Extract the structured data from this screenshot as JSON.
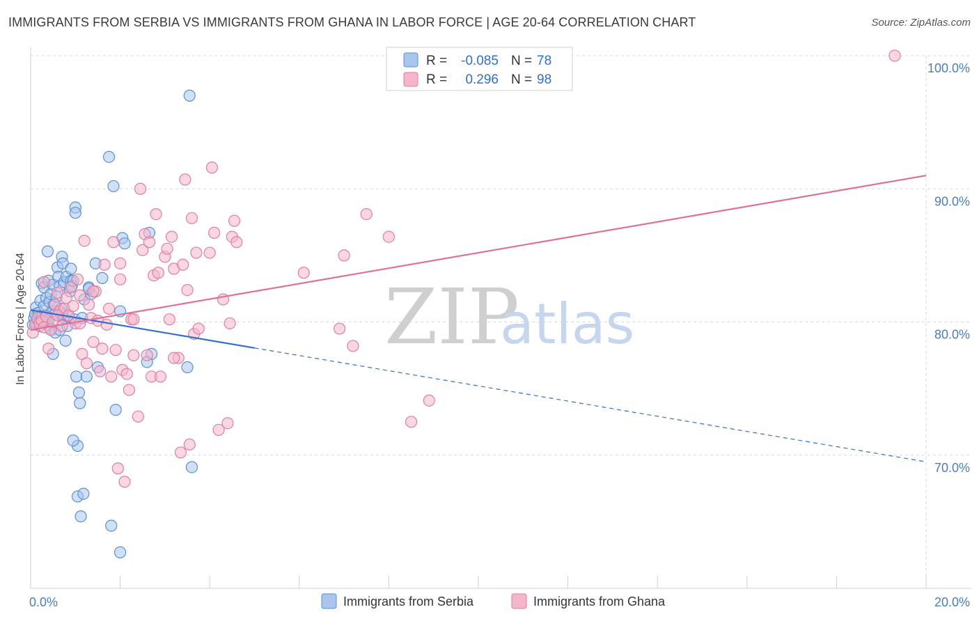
{
  "header": {
    "title": "IMMIGRANTS FROM SERBIA VS IMMIGRANTS FROM GHANA IN LABOR FORCE | AGE 20-64 CORRELATION CHART",
    "source": "Source: ZipAtlas.com"
  },
  "watermark": {
    "part1": "ZIP",
    "part2": "atlas"
  },
  "colors": {
    "serbia_fill": "#a9c7ee",
    "serbia_stroke": "#5b8fd6",
    "serbia_line": "#2f6fd0",
    "ghana_fill": "#f5b6cb",
    "ghana_stroke": "#e07ea0",
    "ghana_line": "#e0709a",
    "axis_text": "#4a7cc8",
    "grid": "#d8d8d8"
  },
  "legend_stats": {
    "rows": [
      {
        "r_label": "R =",
        "r_value": "-0.085",
        "n_label": "N =",
        "n_value": "78"
      },
      {
        "r_label": "R =",
        "r_value": "0.296",
        "n_label": "N =",
        "n_value": "98"
      }
    ]
  },
  "chart_data": {
    "type": "scatter",
    "title": "IMMIGRANTS FROM SERBIA VS IMMIGRANTS FROM GHANA IN LABOR FORCE | AGE 20-64 CORRELATION CHART",
    "xlabel": "",
    "ylabel": "In Labor Force | Age 20-64",
    "xlim": [
      0,
      20
    ],
    "ylim": [
      60,
      100
    ],
    "x_tick_labels": [
      "0.0%",
      "20.0%"
    ],
    "y_ticks": [
      70,
      80,
      90,
      100
    ],
    "y_tick_labels": [
      "70.0%",
      "80.0%",
      "90.0%",
      "100.0%"
    ],
    "grid": true,
    "legend_position": "bottom",
    "series": [
      {
        "name": "Immigrants from Serbia",
        "r": -0.085,
        "n": 78,
        "trend": {
          "x_start": 0.0,
          "y_start": 80.9,
          "x_solid_end": 5.0,
          "x_end": 20.0,
          "y_end": 69.5
        },
        "points": [
          [
            0.05,
            79.8
          ],
          [
            0.08,
            80.3
          ],
          [
            0.1,
            80.6
          ],
          [
            0.12,
            81.1
          ],
          [
            0.12,
            79.9
          ],
          [
            0.15,
            80.2
          ],
          [
            0.18,
            80.7
          ],
          [
            0.2,
            79.7
          ],
          [
            0.2,
            80.1
          ],
          [
            0.22,
            81.6
          ],
          [
            0.25,
            80.4
          ],
          [
            0.25,
            82.9
          ],
          [
            0.28,
            80.0
          ],
          [
            0.3,
            81.2
          ],
          [
            0.3,
            82.6
          ],
          [
            0.35,
            80.5
          ],
          [
            0.35,
            81.8
          ],
          [
            0.38,
            79.8
          ],
          [
            0.38,
            85.3
          ],
          [
            0.4,
            80.2
          ],
          [
            0.4,
            83.1
          ],
          [
            0.42,
            81.5
          ],
          [
            0.45,
            82.1
          ],
          [
            0.45,
            79.5
          ],
          [
            0.48,
            80.8
          ],
          [
            0.5,
            77.6
          ],
          [
            0.5,
            82.8
          ],
          [
            0.52,
            81.3
          ],
          [
            0.55,
            80.6
          ],
          [
            0.55,
            79.2
          ],
          [
            0.58,
            81.9
          ],
          [
            0.6,
            84.1
          ],
          [
            0.62,
            83.4
          ],
          [
            0.65,
            82.7
          ],
          [
            0.65,
            79.4
          ],
          [
            0.68,
            81.0
          ],
          [
            0.7,
            84.9
          ],
          [
            0.72,
            84.4
          ],
          [
            0.75,
            83.0
          ],
          [
            0.75,
            80.3
          ],
          [
            0.78,
            78.6
          ],
          [
            0.8,
            83.4
          ],
          [
            0.82,
            79.7
          ],
          [
            0.85,
            80.4
          ],
          [
            0.88,
            82.3
          ],
          [
            0.9,
            83.1
          ],
          [
            0.9,
            84.0
          ],
          [
            0.92,
            82.7
          ],
          [
            0.95,
            83.1
          ],
          [
            0.98,
            80.2
          ],
          [
            1.0,
            88.6
          ],
          [
            1.0,
            88.2
          ],
          [
            1.02,
            75.9
          ],
          [
            1.05,
            70.7
          ],
          [
            1.05,
            66.9
          ],
          [
            1.08,
            74.7
          ],
          [
            1.1,
            73.9
          ],
          [
            1.12,
            65.4
          ],
          [
            1.15,
            80.3
          ],
          [
            1.18,
            67.1
          ],
          [
            1.2,
            81.7
          ],
          [
            1.25,
            75.9
          ],
          [
            1.3,
            82.6
          ],
          [
            1.35,
            82.1
          ],
          [
            1.45,
            84.4
          ],
          [
            1.5,
            76.6
          ],
          [
            1.6,
            83.3
          ],
          [
            1.75,
            92.4
          ],
          [
            1.8,
            64.7
          ],
          [
            1.85,
            90.2
          ],
          [
            1.9,
            73.4
          ],
          [
            2.0,
            80.8
          ],
          [
            2.05,
            86.3
          ],
          [
            2.1,
            85.9
          ],
          [
            2.6,
            77.0
          ],
          [
            2.65,
            86.7
          ],
          [
            3.5,
            76.6
          ],
          [
            3.6,
            69.1
          ]
        ],
        "extra_points": [
          [
            3.55,
            97.0
          ],
          [
            2.0,
            62.7
          ],
          [
            0.95,
            71.1
          ],
          [
            1.3,
            82.5
          ],
          [
            0.7,
            80.6
          ],
          [
            2.7,
            77.6
          ]
        ]
      },
      {
        "name": "Immigrants from Ghana",
        "r": 0.296,
        "n": 98,
        "trend": {
          "x_start": 0.0,
          "y_start": 79.4,
          "x_end": 20.0,
          "y_end": 91.0
        },
        "points": [
          [
            0.05,
            79.2
          ],
          [
            0.1,
            79.8
          ],
          [
            0.15,
            80.3
          ],
          [
            0.2,
            79.9
          ],
          [
            0.25,
            80.1
          ],
          [
            0.3,
            79.6
          ],
          [
            0.35,
            80.4
          ],
          [
            0.4,
            78.0
          ],
          [
            0.45,
            79.4
          ],
          [
            0.5,
            80.0
          ],
          [
            0.55,
            81.3
          ],
          [
            0.6,
            82.2
          ],
          [
            0.65,
            80.8
          ],
          [
            0.7,
            79.7
          ],
          [
            0.75,
            81.0
          ],
          [
            0.8,
            81.8
          ],
          [
            0.85,
            80.5
          ],
          [
            0.9,
            82.6
          ],
          [
            0.95,
            81.2
          ],
          [
            1.0,
            79.9
          ],
          [
            1.05,
            83.2
          ],
          [
            1.1,
            82.0
          ],
          [
            1.15,
            77.6
          ],
          [
            1.2,
            86.1
          ],
          [
            1.25,
            76.9
          ],
          [
            1.3,
            81.3
          ],
          [
            1.35,
            80.3
          ],
          [
            1.4,
            78.5
          ],
          [
            1.45,
            82.3
          ],
          [
            1.5,
            80.1
          ],
          [
            1.55,
            76.3
          ],
          [
            1.6,
            78.0
          ],
          [
            1.65,
            84.3
          ],
          [
            1.7,
            79.8
          ],
          [
            1.75,
            81.0
          ],
          [
            1.8,
            75.9
          ],
          [
            1.85,
            86.0
          ],
          [
            1.9,
            77.9
          ],
          [
            1.95,
            69.0
          ],
          [
            2.0,
            83.2
          ],
          [
            2.05,
            76.4
          ],
          [
            2.1,
            68.0
          ],
          [
            2.15,
            76.1
          ],
          [
            2.2,
            74.9
          ],
          [
            2.25,
            80.2
          ],
          [
            2.3,
            77.5
          ],
          [
            2.4,
            72.9
          ],
          [
            2.45,
            90.0
          ],
          [
            2.5,
            85.4
          ],
          [
            2.55,
            86.6
          ],
          [
            2.6,
            77.5
          ],
          [
            2.65,
            86.0
          ],
          [
            2.7,
            75.9
          ],
          [
            2.75,
            83.5
          ],
          [
            2.8,
            88.1
          ],
          [
            2.85,
            83.7
          ],
          [
            2.9,
            75.9
          ],
          [
            3.0,
            84.9
          ],
          [
            3.05,
            85.5
          ],
          [
            3.1,
            80.2
          ],
          [
            3.15,
            86.4
          ],
          [
            3.2,
            84.0
          ],
          [
            3.3,
            77.3
          ],
          [
            3.35,
            70.2
          ],
          [
            3.4,
            84.3
          ],
          [
            3.45,
            90.7
          ],
          [
            3.5,
            82.4
          ],
          [
            3.55,
            70.8
          ],
          [
            3.6,
            87.8
          ],
          [
            3.65,
            79.1
          ],
          [
            3.7,
            85.2
          ],
          [
            3.75,
            79.5
          ],
          [
            4.0,
            85.2
          ],
          [
            4.05,
            91.6
          ],
          [
            4.1,
            86.7
          ],
          [
            4.2,
            71.9
          ],
          [
            4.3,
            81.7
          ],
          [
            4.4,
            72.4
          ],
          [
            4.45,
            79.9
          ],
          [
            4.5,
            86.4
          ],
          [
            4.55,
            87.6
          ],
          [
            4.6,
            86.0
          ],
          [
            6.1,
            83.7
          ],
          [
            6.9,
            79.5
          ],
          [
            7.0,
            85.0
          ],
          [
            7.2,
            78.2
          ],
          [
            7.5,
            88.1
          ],
          [
            8.0,
            86.4
          ],
          [
            8.5,
            72.5
          ],
          [
            8.9,
            74.1
          ],
          [
            19.3,
            100.0
          ],
          [
            0.3,
            83.0
          ],
          [
            0.6,
            80.5
          ],
          [
            1.1,
            79.9
          ],
          [
            1.4,
            82.3
          ],
          [
            2.0,
            84.4
          ],
          [
            2.3,
            80.2
          ],
          [
            3.2,
            77.3
          ]
        ]
      }
    ]
  },
  "legend": {
    "serbia_label": "Immigrants from Serbia",
    "ghana_label": "Immigrants from Ghana"
  }
}
